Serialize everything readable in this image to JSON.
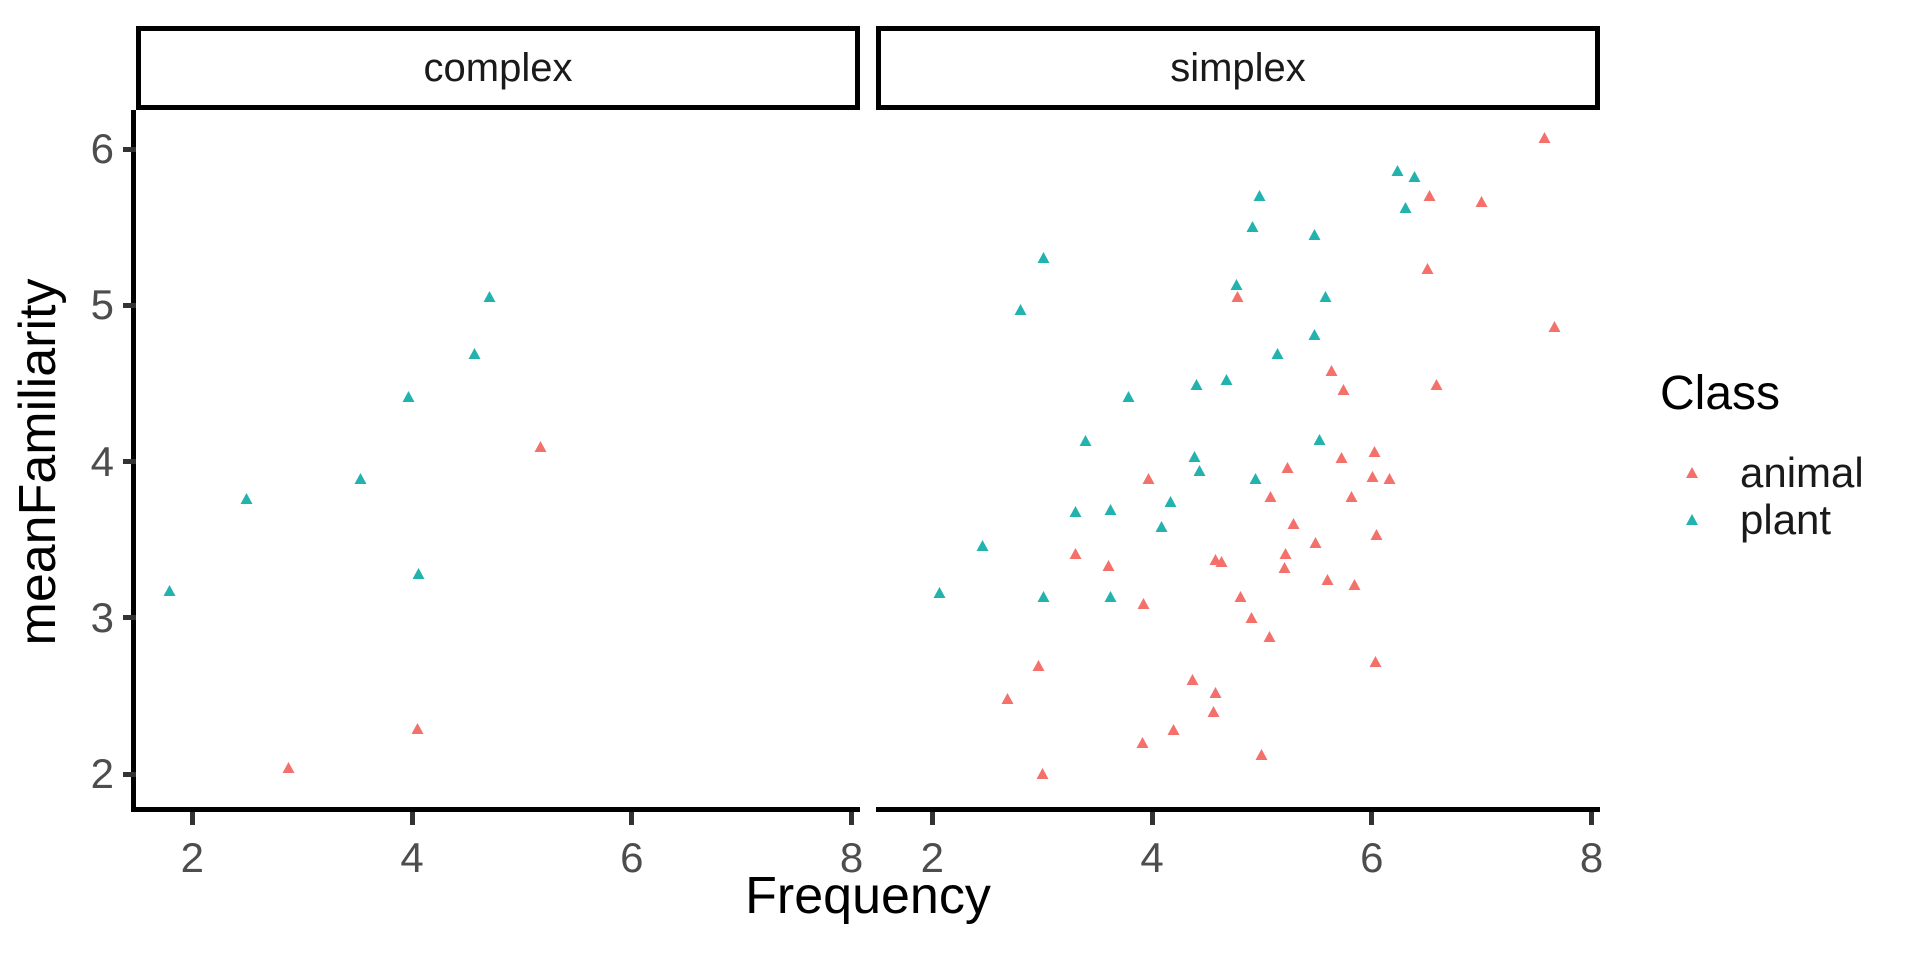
{
  "figure": {
    "background": "#ffffff"
  },
  "axes": {
    "x_label": "Frequency",
    "y_label": "meanFamiliarity",
    "x_ticks": [
      2,
      4,
      6,
      8
    ],
    "y_ticks": [
      2,
      3,
      4,
      5,
      6
    ],
    "x_domain": [
      1.488,
      8.077
    ],
    "y_domain": [
      1.789,
      6.25
    ],
    "tick_label_color": "#4d4d4d",
    "tick_mark_color": "#333333",
    "axis_line_color": "#000000"
  },
  "legend": {
    "title": "Class",
    "entries": [
      {
        "label": "animal",
        "color": "#f4716b"
      },
      {
        "label": "plant",
        "color": "#23b3ae"
      }
    ]
  },
  "chart_data": {
    "type": "scatter",
    "marker": "triangle",
    "xlabel": "Frequency",
    "ylabel": "meanFamiliarity",
    "xlim": [
      1.488,
      8.077
    ],
    "ylim": [
      1.789,
      6.25
    ],
    "grid": false,
    "legend_position": "right",
    "facets": [
      {
        "label": "complex",
        "series": [
          {
            "name": "animal",
            "color": "#f4716b",
            "points": [
              [
                2.88,
                2.04
              ],
              [
                4.05,
                2.29
              ],
              [
                5.17,
                4.09
              ]
            ]
          },
          {
            "name": "plant",
            "color": "#23b3ae",
            "points": [
              [
                1.8,
                3.17
              ],
              [
                2.5,
                3.76
              ],
              [
                3.54,
                3.89
              ],
              [
                3.97,
                4.41
              ],
              [
                4.06,
                3.28
              ],
              [
                4.57,
                4.69
              ],
              [
                4.71,
                5.05
              ]
            ]
          }
        ]
      },
      {
        "label": "simplex",
        "series": [
          {
            "name": "animal",
            "color": "#f4716b",
            "points": [
              [
                7.58,
                6.07
              ],
              [
                6.53,
                5.7
              ],
              [
                7.0,
                5.66
              ],
              [
                6.51,
                5.23
              ],
              [
                4.78,
                5.05
              ],
              [
                7.67,
                4.86
              ],
              [
                5.64,
                4.58
              ],
              [
                6.59,
                4.49
              ],
              [
                5.75,
                4.46
              ],
              [
                6.03,
                4.06
              ],
              [
                5.73,
                4.02
              ],
              [
                5.24,
                3.96
              ],
              [
                6.01,
                3.9
              ],
              [
                3.97,
                3.89
              ],
              [
                6.17,
                3.89
              ],
              [
                5.08,
                3.77
              ],
              [
                5.82,
                3.77
              ],
              [
                5.29,
                3.6
              ],
              [
                6.05,
                3.53
              ],
              [
                5.49,
                3.48
              ],
              [
                5.22,
                3.41
              ],
              [
                3.31,
                3.41
              ],
              [
                4.58,
                3.37
              ],
              [
                4.64,
                3.36
              ],
              [
                3.61,
                3.33
              ],
              [
                5.21,
                3.32
              ],
              [
                5.6,
                3.24
              ],
              [
                5.85,
                3.21
              ],
              [
                4.81,
                3.13
              ],
              [
                3.93,
                3.09
              ],
              [
                4.91,
                3.0
              ],
              [
                5.07,
                2.88
              ],
              [
                6.04,
                2.72
              ],
              [
                2.97,
                2.69
              ],
              [
                4.37,
                2.6
              ],
              [
                4.58,
                2.52
              ],
              [
                2.69,
                2.48
              ],
              [
                4.56,
                2.4
              ],
              [
                4.2,
                2.28
              ],
              [
                3.92,
                2.2
              ],
              [
                5.0,
                2.12
              ],
              [
                3.01,
                2.0
              ]
            ]
          },
          {
            "name": "plant",
            "color": "#23b3ae",
            "points": [
              [
                6.24,
                5.86
              ],
              [
                6.39,
                5.82
              ],
              [
                4.98,
                5.7
              ],
              [
                6.31,
                5.62
              ],
              [
                4.92,
                5.5
              ],
              [
                5.48,
                5.45
              ],
              [
                3.02,
                5.3
              ],
              [
                4.77,
                5.13
              ],
              [
                5.58,
                5.05
              ],
              [
                2.81,
                4.97
              ],
              [
                5.48,
                4.81
              ],
              [
                5.15,
                4.69
              ],
              [
                4.68,
                4.52
              ],
              [
                4.41,
                4.49
              ],
              [
                3.79,
                4.41
              ],
              [
                5.53,
                4.14
              ],
              [
                3.4,
                4.13
              ],
              [
                4.39,
                4.03
              ],
              [
                4.44,
                3.94
              ],
              [
                4.95,
                3.89
              ],
              [
                4.17,
                3.74
              ],
              [
                3.63,
                3.69
              ],
              [
                3.31,
                3.68
              ],
              [
                4.09,
                3.58
              ],
              [
                2.46,
                3.46
              ],
              [
                2.07,
                3.16
              ],
              [
                3.02,
                3.13
              ],
              [
                3.63,
                3.13
              ]
            ]
          }
        ]
      }
    ]
  }
}
